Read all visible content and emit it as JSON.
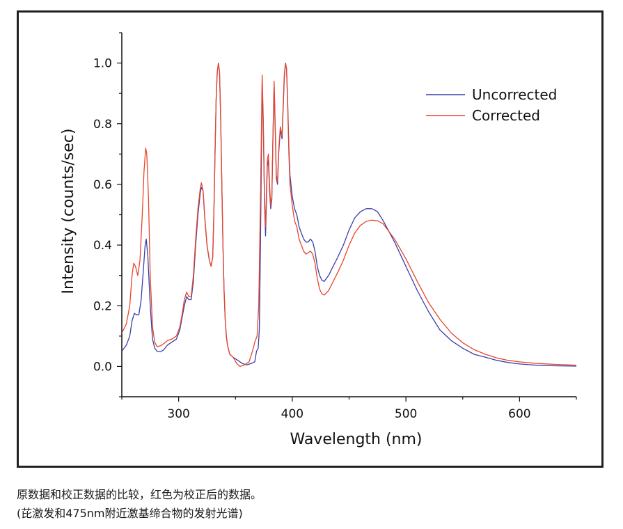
{
  "chart_data": {
    "type": "line",
    "title": "",
    "xlabel": "Wavelength (nm)",
    "ylabel": "Intensity (counts/sec)",
    "xlim": [
      250,
      650
    ],
    "ylim": [
      -0.1,
      1.1
    ],
    "x_ticks": [
      300,
      400,
      500,
      600
    ],
    "x_tick_labels": [
      "300",
      "400",
      "500",
      "600"
    ],
    "y_ticks": [
      0.0,
      0.2,
      0.4,
      0.6,
      0.8,
      1.0
    ],
    "y_tick_labels": [
      "0.0",
      "0.2",
      "0.4",
      "0.6",
      "0.8",
      "1.0"
    ],
    "legend_position": "top-right",
    "series": [
      {
        "name": "Uncorrected",
        "color": "#3b3fa8",
        "points": [
          [
            250,
            0.05
          ],
          [
            254,
            0.07
          ],
          [
            257,
            0.1
          ],
          [
            259,
            0.15
          ],
          [
            261,
            0.175
          ],
          [
            263,
            0.17
          ],
          [
            265,
            0.17
          ],
          [
            267,
            0.22
          ],
          [
            269,
            0.32
          ],
          [
            270.5,
            0.4
          ],
          [
            271.5,
            0.42
          ],
          [
            273,
            0.36
          ],
          [
            275,
            0.2
          ],
          [
            277,
            0.09
          ],
          [
            279,
            0.06
          ],
          [
            281,
            0.05
          ],
          [
            284,
            0.048
          ],
          [
            287,
            0.055
          ],
          [
            290,
            0.07
          ],
          [
            294,
            0.08
          ],
          [
            298,
            0.09
          ],
          [
            301,
            0.12
          ],
          [
            303,
            0.16
          ],
          [
            305,
            0.2
          ],
          [
            307,
            0.23
          ],
          [
            309,
            0.22
          ],
          [
            311,
            0.22
          ],
          [
            313,
            0.28
          ],
          [
            315,
            0.4
          ],
          [
            317,
            0.5
          ],
          [
            319,
            0.57
          ],
          [
            320,
            0.59
          ],
          [
            321.5,
            0.58
          ],
          [
            323,
            0.49
          ],
          [
            325,
            0.4
          ],
          [
            327,
            0.35
          ],
          [
            328.5,
            0.33
          ],
          [
            330,
            0.36
          ],
          [
            331,
            0.5
          ],
          [
            332,
            0.7
          ],
          [
            333,
            0.88
          ],
          [
            334,
            0.97
          ],
          [
            335,
            1.0
          ],
          [
            336,
            0.97
          ],
          [
            337,
            0.82
          ],
          [
            338,
            0.6
          ],
          [
            339,
            0.4
          ],
          [
            340,
            0.25
          ],
          [
            341,
            0.15
          ],
          [
            342,
            0.1
          ],
          [
            343,
            0.07
          ],
          [
            345,
            0.04
          ],
          [
            348,
            0.03
          ],
          [
            352,
            0.02
          ],
          [
            356,
            0.01
          ],
          [
            360,
            0.005
          ],
          [
            364,
            0.01
          ],
          [
            367,
            0.015
          ],
          [
            368.5,
            0.05
          ],
          [
            370,
            0.06
          ],
          [
            371,
            0.12
          ],
          [
            372,
            0.4
          ],
          [
            373.5,
            0.93
          ],
          [
            374.5,
            0.8
          ],
          [
            375.5,
            0.55
          ],
          [
            376.5,
            0.43
          ],
          [
            378,
            0.66
          ],
          [
            379,
            0.68
          ],
          [
            380,
            0.58
          ],
          [
            381,
            0.52
          ],
          [
            382,
            0.55
          ],
          [
            383,
            0.75
          ],
          [
            384,
            0.93
          ],
          [
            385,
            0.78
          ],
          [
            386,
            0.62
          ],
          [
            387,
            0.6
          ],
          [
            388,
            0.7
          ],
          [
            389.5,
            0.78
          ],
          [
            391,
            0.75
          ],
          [
            392,
            0.85
          ],
          [
            393,
            0.95
          ],
          [
            394,
            1.0
          ],
          [
            395,
            0.98
          ],
          [
            396,
            0.87
          ],
          [
            397,
            0.72
          ],
          [
            398,
            0.63
          ],
          [
            400,
            0.56
          ],
          [
            402,
            0.52
          ],
          [
            404,
            0.5
          ],
          [
            406,
            0.46
          ],
          [
            408,
            0.44
          ],
          [
            410,
            0.42
          ],
          [
            412,
            0.41
          ],
          [
            414,
            0.41
          ],
          [
            416,
            0.42
          ],
          [
            418,
            0.41
          ],
          [
            420,
            0.38
          ],
          [
            422,
            0.33
          ],
          [
            424,
            0.3
          ],
          [
            426,
            0.285
          ],
          [
            428,
            0.28
          ],
          [
            432,
            0.3
          ],
          [
            436,
            0.33
          ],
          [
            440,
            0.36
          ],
          [
            445,
            0.4
          ],
          [
            450,
            0.45
          ],
          [
            455,
            0.49
          ],
          [
            460,
            0.51
          ],
          [
            465,
            0.52
          ],
          [
            470,
            0.52
          ],
          [
            475,
            0.51
          ],
          [
            480,
            0.48
          ],
          [
            490,
            0.41
          ],
          [
            500,
            0.33
          ],
          [
            510,
            0.25
          ],
          [
            520,
            0.18
          ],
          [
            530,
            0.12
          ],
          [
            540,
            0.085
          ],
          [
            550,
            0.06
          ],
          [
            560,
            0.04
          ],
          [
            570,
            0.03
          ],
          [
            580,
            0.02
          ],
          [
            590,
            0.013
          ],
          [
            600,
            0.008
          ],
          [
            615,
            0.004
          ],
          [
            630,
            0.002
          ],
          [
            650,
            0.001
          ]
        ]
      },
      {
        "name": "Corrected",
        "color": "#e8452a",
        "points": [
          [
            250,
            0.11
          ],
          [
            254,
            0.14
          ],
          [
            257,
            0.2
          ],
          [
            259,
            0.3
          ],
          [
            260.5,
            0.34
          ],
          [
            262,
            0.33
          ],
          [
            264,
            0.3
          ],
          [
            266,
            0.35
          ],
          [
            268,
            0.5
          ],
          [
            269.5,
            0.64
          ],
          [
            271,
            0.72
          ],
          [
            272,
            0.7
          ],
          [
            273.5,
            0.55
          ],
          [
            275,
            0.3
          ],
          [
            277,
            0.13
          ],
          [
            279,
            0.08
          ],
          [
            281,
            0.065
          ],
          [
            284,
            0.068
          ],
          [
            287,
            0.075
          ],
          [
            290,
            0.085
          ],
          [
            294,
            0.09
          ],
          [
            298,
            0.1
          ],
          [
            301,
            0.13
          ],
          [
            303,
            0.17
          ],
          [
            305,
            0.22
          ],
          [
            307,
            0.245
          ],
          [
            309,
            0.23
          ],
          [
            311,
            0.23
          ],
          [
            313,
            0.3
          ],
          [
            315,
            0.42
          ],
          [
            317,
            0.52
          ],
          [
            319,
            0.585
          ],
          [
            320,
            0.605
          ],
          [
            321.5,
            0.58
          ],
          [
            323,
            0.49
          ],
          [
            325,
            0.4
          ],
          [
            327,
            0.35
          ],
          [
            328.5,
            0.33
          ],
          [
            330,
            0.36
          ],
          [
            331,
            0.5
          ],
          [
            332,
            0.7
          ],
          [
            333,
            0.88
          ],
          [
            334,
            0.97
          ],
          [
            335,
            1.0
          ],
          [
            336,
            0.97
          ],
          [
            337,
            0.82
          ],
          [
            338,
            0.6
          ],
          [
            339,
            0.4
          ],
          [
            340,
            0.25
          ],
          [
            341,
            0.15
          ],
          [
            342,
            0.1
          ],
          [
            343,
            0.07
          ],
          [
            345,
            0.04
          ],
          [
            348,
            0.03
          ],
          [
            351,
            0.01
          ],
          [
            354,
            0.0
          ],
          [
            358,
            0.005
          ],
          [
            362,
            0.015
          ],
          [
            365,
            0.05
          ],
          [
            367,
            0.08
          ],
          [
            369,
            0.1
          ],
          [
            370.5,
            0.2
          ],
          [
            372,
            0.55
          ],
          [
            373.5,
            0.96
          ],
          [
            374.5,
            0.82
          ],
          [
            375.5,
            0.57
          ],
          [
            376.5,
            0.46
          ],
          [
            378,
            0.68
          ],
          [
            379,
            0.7
          ],
          [
            380,
            0.6
          ],
          [
            381,
            0.53
          ],
          [
            382,
            0.56
          ],
          [
            383,
            0.76
          ],
          [
            384,
            0.94
          ],
          [
            385,
            0.79
          ],
          [
            386,
            0.63
          ],
          [
            387,
            0.61
          ],
          [
            388,
            0.71
          ],
          [
            389.5,
            0.79
          ],
          [
            391,
            0.76
          ],
          [
            392,
            0.86
          ],
          [
            393,
            0.96
          ],
          [
            394,
            1.0
          ],
          [
            395,
            0.98
          ],
          [
            396,
            0.86
          ],
          [
            397,
            0.7
          ],
          [
            398,
            0.6
          ],
          [
            400,
            0.53
          ],
          [
            402,
            0.48
          ],
          [
            404,
            0.46
          ],
          [
            406,
            0.42
          ],
          [
            408,
            0.4
          ],
          [
            410,
            0.38
          ],
          [
            412,
            0.37
          ],
          [
            414,
            0.375
          ],
          [
            416,
            0.38
          ],
          [
            418,
            0.37
          ],
          [
            420,
            0.34
          ],
          [
            422,
            0.29
          ],
          [
            424,
            0.255
          ],
          [
            426,
            0.24
          ],
          [
            428,
            0.235
          ],
          [
            432,
            0.25
          ],
          [
            436,
            0.28
          ],
          [
            440,
            0.31
          ],
          [
            445,
            0.35
          ],
          [
            450,
            0.4
          ],
          [
            455,
            0.44
          ],
          [
            460,
            0.465
          ],
          [
            465,
            0.478
          ],
          [
            470,
            0.482
          ],
          [
            475,
            0.48
          ],
          [
            480,
            0.47
          ],
          [
            490,
            0.42
          ],
          [
            500,
            0.355
          ],
          [
            510,
            0.28
          ],
          [
            520,
            0.21
          ],
          [
            530,
            0.155
          ],
          [
            540,
            0.11
          ],
          [
            550,
            0.078
          ],
          [
            560,
            0.055
          ],
          [
            570,
            0.04
          ],
          [
            580,
            0.028
          ],
          [
            590,
            0.02
          ],
          [
            600,
            0.015
          ],
          [
            615,
            0.01
          ],
          [
            630,
            0.007
          ],
          [
            650,
            0.004
          ]
        ]
      }
    ]
  },
  "caption": {
    "line1": "原数据和校正数据的比较，红色为校正后的数据。",
    "line2": "(芘激发和475nm附近激基缔合物的发射光谱)"
  }
}
